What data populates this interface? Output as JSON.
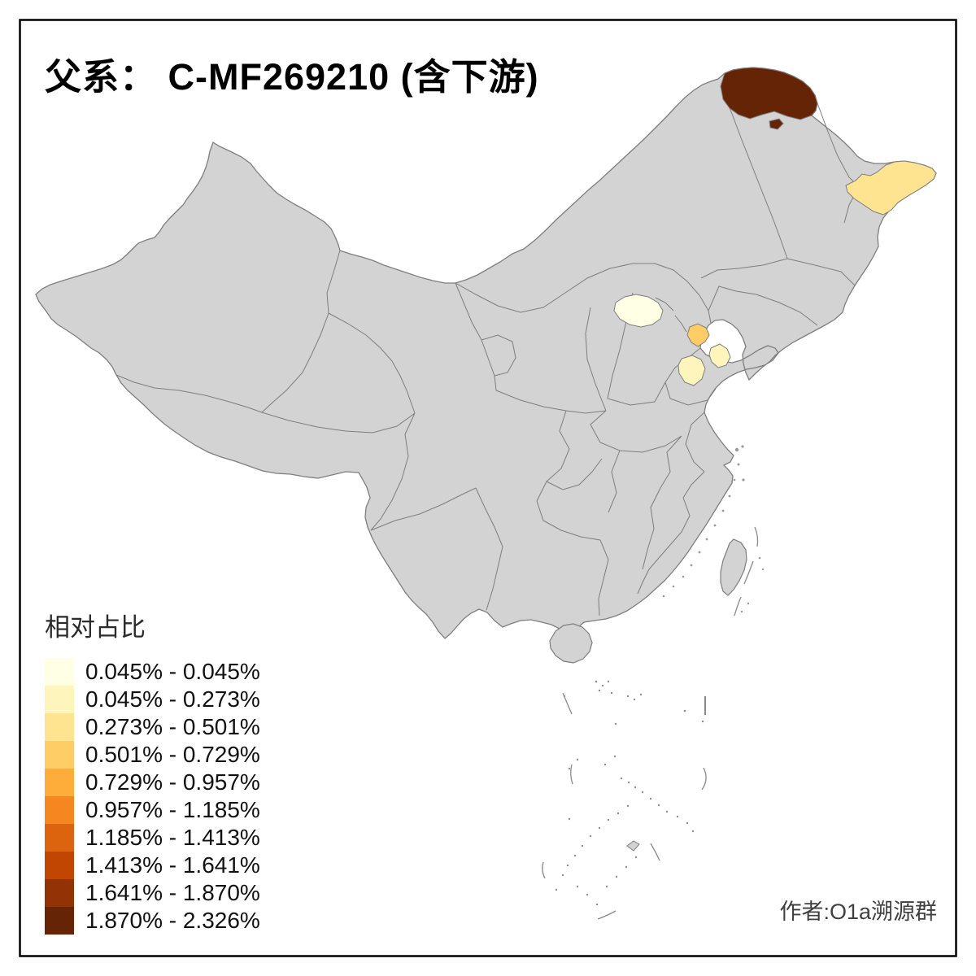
{
  "title": "父系： C-MF269210 (含下游)",
  "legend": {
    "title": "相对占比",
    "bins": [
      {
        "range": "0.045% - 0.045%",
        "color": "#FFFFE5"
      },
      {
        "range": "0.045% - 0.273%",
        "color": "#FEF5BD"
      },
      {
        "range": "0.273% - 0.501%",
        "color": "#FEE391"
      },
      {
        "range": "0.501% - 0.729%",
        "color": "#FECD66"
      },
      {
        "range": "0.729% - 0.957%",
        "color": "#FEAD3B"
      },
      {
        "range": "0.957% - 1.185%",
        "color": "#F58620"
      },
      {
        "range": "1.185% - 1.413%",
        "color": "#DC640F"
      },
      {
        "range": "1.413% - 1.641%",
        "color": "#C04602"
      },
      {
        "range": "1.641% - 1.870%",
        "color": "#933204"
      },
      {
        "range": "1.870% - 2.326%",
        "color": "#662406"
      }
    ]
  },
  "attribution": "作者:O1a溯源群",
  "colors": {
    "frame": "#000000",
    "title_text": "#000000",
    "legend_text": "#1A1A1A",
    "attribution_text": "#404040"
  },
  "map": {
    "base_fill": "#D3D3D3",
    "boundary_color": "#7E7E7E",
    "sea": "#FFFFFF",
    "highlighted_regions": [
      {
        "id": "far-north",
        "color_bin": 9,
        "range": "1.870% - 2.326%"
      },
      {
        "id": "far-north-enclave",
        "color_bin": 9,
        "range": "1.870% - 2.326%"
      },
      {
        "id": "northeast-east",
        "color_bin": 2,
        "range": "0.273% - 0.501%"
      },
      {
        "id": "north-central",
        "color_bin": 0,
        "range": "0.045% - 0.045%"
      },
      {
        "id": "east-coast-north",
        "color_bin": 3,
        "range": "0.501% - 0.729%"
      },
      {
        "id": "east-coast-mid",
        "color_bin": 1,
        "range": "0.045% - 0.273%"
      },
      {
        "id": "east-coast-south",
        "color_bin": 1,
        "range": "0.045% - 0.273%"
      }
    ]
  }
}
